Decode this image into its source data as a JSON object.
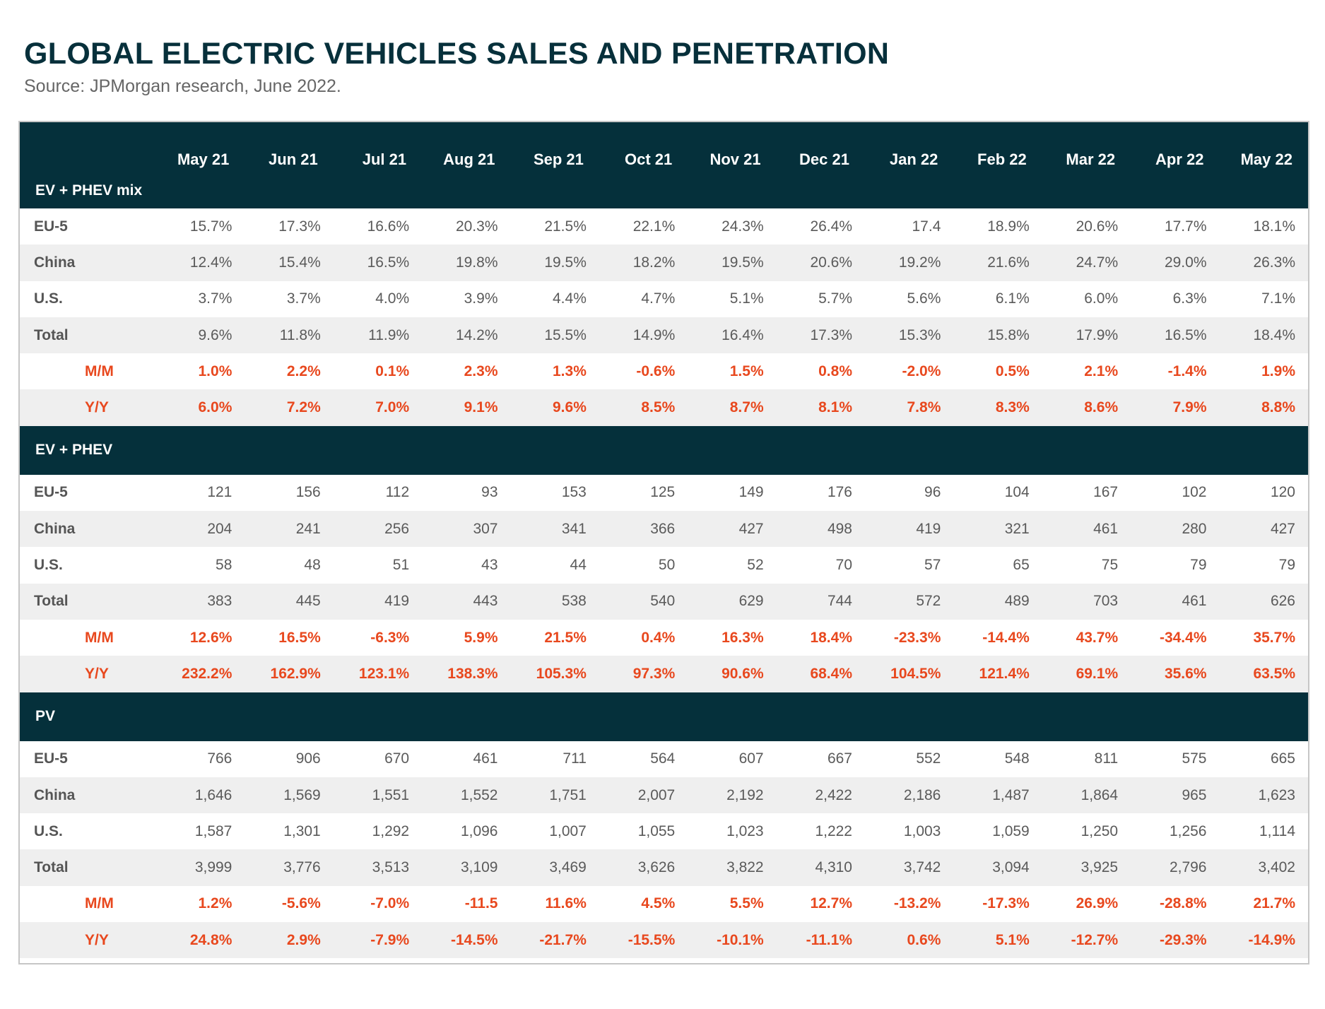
{
  "title": "GLOBAL ELECTRIC VEHICLES SALES AND PENETRATION",
  "subtitle": "Source: JPMorgan research, June 2022.",
  "colors": {
    "header_bg": "#05303b",
    "highlight": "#e8481e",
    "band": "#efefef",
    "text": "#5a5a5a"
  },
  "chart_data": {
    "type": "table",
    "columns": [
      "May 21",
      "Jun 21",
      "Jul 21",
      "Aug 21",
      "Sep 21",
      "Oct 21",
      "Nov 21",
      "Dec 21",
      "Jan 22",
      "Feb 22",
      "Mar 22",
      "Apr 22",
      "May 22"
    ],
    "sections": [
      {
        "name": "EV + PHEV mix",
        "rows": [
          {
            "label": "EU-5",
            "values": [
              "15.7%",
              "17.3%",
              "16.6%",
              "20.3%",
              "21.5%",
              "22.1%",
              "24.3%",
              "26.4%",
              "17.4",
              "18.9%",
              "20.6%",
              "17.7%",
              "18.1%"
            ]
          },
          {
            "label": "China",
            "values": [
              "12.4%",
              "15.4%",
              "16.5%",
              "19.8%",
              "19.5%",
              "18.2%",
              "19.5%",
              "20.6%",
              "19.2%",
              "21.6%",
              "24.7%",
              "29.0%",
              "26.3%"
            ]
          },
          {
            "label": "U.S.",
            "values": [
              "3.7%",
              "3.7%",
              "4.0%",
              "3.9%",
              "4.4%",
              "4.7%",
              "5.1%",
              "5.7%",
              "5.6%",
              "6.1%",
              "6.0%",
              "6.3%",
              "7.1%"
            ]
          },
          {
            "label": "Total",
            "values": [
              "9.6%",
              "11.8%",
              "11.9%",
              "14.2%",
              "15.5%",
              "14.9%",
              "16.4%",
              "17.3%",
              "15.3%",
              "15.8%",
              "17.9%",
              "16.5%",
              "18.4%"
            ]
          },
          {
            "label": "M/M",
            "highlight": true,
            "values": [
              "1.0%",
              "2.2%",
              "0.1%",
              "2.3%",
              "1.3%",
              "-0.6%",
              "1.5%",
              "0.8%",
              "-2.0%",
              "0.5%",
              "2.1%",
              "-1.4%",
              "1.9%"
            ]
          },
          {
            "label": "Y/Y",
            "highlight": true,
            "values": [
              "6.0%",
              "7.2%",
              "7.0%",
              "9.1%",
              "9.6%",
              "8.5%",
              "8.7%",
              "8.1%",
              "7.8%",
              "8.3%",
              "8.6%",
              "7.9%",
              "8.8%"
            ]
          }
        ]
      },
      {
        "name": "EV + PHEV",
        "rows": [
          {
            "label": "EU-5",
            "values": [
              "121",
              "156",
              "112",
              "93",
              "153",
              "125",
              "149",
              "176",
              "96",
              "104",
              "167",
              "102",
              "120"
            ]
          },
          {
            "label": "China",
            "values": [
              "204",
              "241",
              "256",
              "307",
              "341",
              "366",
              "427",
              "498",
              "419",
              "321",
              "461",
              "280",
              "427"
            ]
          },
          {
            "label": "U.S.",
            "values": [
              "58",
              "48",
              "51",
              "43",
              "44",
              "50",
              "52",
              "70",
              "57",
              "65",
              "75",
              "79",
              "79"
            ]
          },
          {
            "label": "Total",
            "values": [
              "383",
              "445",
              "419",
              "443",
              "538",
              "540",
              "629",
              "744",
              "572",
              "489",
              "703",
              "461",
              "626"
            ]
          },
          {
            "label": "M/M",
            "highlight": true,
            "values": [
              "12.6%",
              "16.5%",
              "-6.3%",
              "5.9%",
              "21.5%",
              "0.4%",
              "16.3%",
              "18.4%",
              "-23.3%",
              "-14.4%",
              "43.7%",
              "-34.4%",
              "35.7%"
            ]
          },
          {
            "label": "Y/Y",
            "highlight": true,
            "values": [
              "232.2%",
              "162.9%",
              "123.1%",
              "138.3%",
              "105.3%",
              "97.3%",
              "90.6%",
              "68.4%",
              "104.5%",
              "121.4%",
              "69.1%",
              "35.6%",
              "63.5%"
            ]
          }
        ]
      },
      {
        "name": "PV",
        "rows": [
          {
            "label": "EU-5",
            "values": [
              "766",
              "906",
              "670",
              "461",
              "711",
              "564",
              "607",
              "667",
              "552",
              "548",
              "811",
              "575",
              "665"
            ]
          },
          {
            "label": "China",
            "values": [
              "1,646",
              "1,569",
              "1,551",
              "1,552",
              "1,751",
              "2,007",
              "2,192",
              "2,422",
              "2,186",
              "1,487",
              "1,864",
              "965",
              "1,623"
            ]
          },
          {
            "label": "U.S.",
            "values": [
              "1,587",
              "1,301",
              "1,292",
              "1,096",
              "1,007",
              "1,055",
              "1,023",
              "1,222",
              "1,003",
              "1,059",
              "1,250",
              "1,256",
              "1,114"
            ]
          },
          {
            "label": "Total",
            "values": [
              "3,999",
              "3,776",
              "3,513",
              "3,109",
              "3,469",
              "3,626",
              "3,822",
              "4,310",
              "3,742",
              "3,094",
              "3,925",
              "2,796",
              "3,402"
            ]
          },
          {
            "label": "M/M",
            "highlight": true,
            "values": [
              "1.2%",
              "-5.6%",
              "-7.0%",
              "-11.5",
              "11.6%",
              "4.5%",
              "5.5%",
              "12.7%",
              "-13.2%",
              "-17.3%",
              "26.9%",
              "-28.8%",
              "21.7%"
            ]
          },
          {
            "label": "Y/Y",
            "highlight": true,
            "values": [
              "24.8%",
              "2.9%",
              "-7.9%",
              "-14.5%",
              "-21.7%",
              "-15.5%",
              "-10.1%",
              "-11.1%",
              "0.6%",
              "5.1%",
              "-12.7%",
              "-29.3%",
              "-14.9%"
            ]
          }
        ]
      }
    ]
  }
}
